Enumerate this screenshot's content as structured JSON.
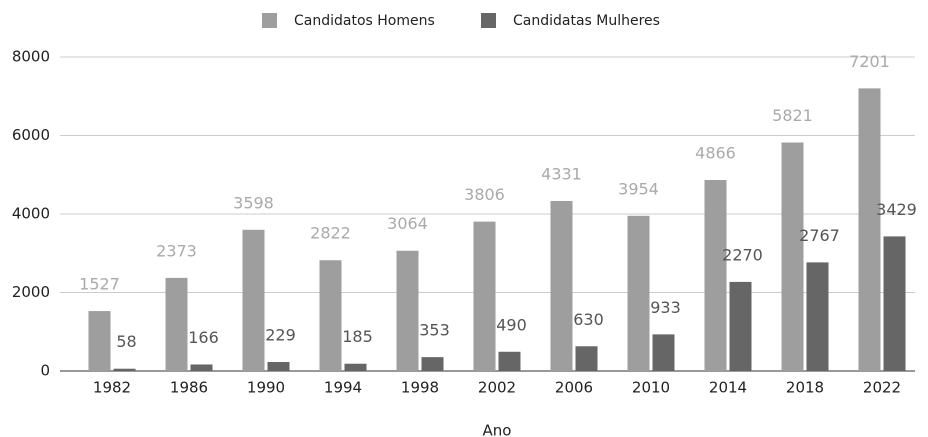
{
  "chart_data": {
    "type": "bar",
    "x_label": "Ano",
    "categories": [
      "1982",
      "1986",
      "1990",
      "1994",
      "1998",
      "2002",
      "2006",
      "2010",
      "2014",
      "2018",
      "2022"
    ],
    "series": [
      {
        "name": "Candidatos Homens",
        "color": "#9e9e9e",
        "values": [
          1527,
          2373,
          3598,
          2822,
          3064,
          3806,
          4331,
          3954,
          4866,
          5821,
          7201
        ]
      },
      {
        "name": "Candidatas Mulheres",
        "color": "#666666",
        "values": [
          58,
          166,
          229,
          185,
          353,
          490,
          630,
          933,
          2270,
          2767,
          3429
        ]
      }
    ],
    "ylim": [
      0,
      8000
    ],
    "yticks": [
      0,
      2000,
      4000,
      6000,
      8000
    ],
    "grid": true,
    "legend": "top"
  }
}
